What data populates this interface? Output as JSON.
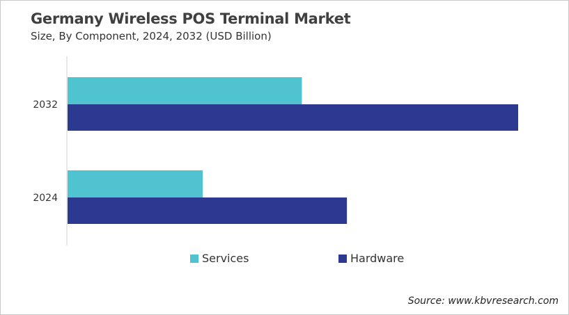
{
  "chart_data": {
    "type": "bar",
    "orientation": "horizontal",
    "title": "Germany Wireless POS Terminal Market",
    "subtitle": "Size, By Component, 2024, 2032 (USD Billion)",
    "categories": [
      "2032",
      "2024"
    ],
    "series": [
      {
        "name": "Services",
        "color": "#4fc3cf",
        "values": [
          0.52,
          0.3
        ]
      },
      {
        "name": "Hardware",
        "color": "#2b3990",
        "values": [
          1.0,
          0.62
        ]
      }
    ],
    "value_note_axis": "",
    "xlim": [
      0,
      1.0
    ],
    "grid": false,
    "legend": "bottom",
    "source": "Source: www.kbvresearch.com"
  }
}
